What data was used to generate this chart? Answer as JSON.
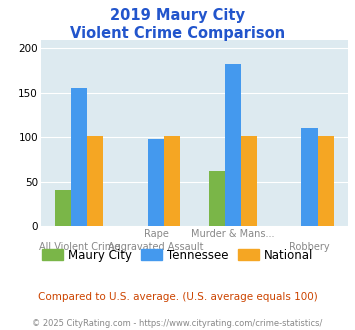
{
  "title_line1": "2019 Maury City",
  "title_line2": "Violent Crime Comparison",
  "title_color": "#2255cc",
  "cat_labels_top": [
    "",
    "Rape",
    "Murder & Mans...",
    ""
  ],
  "cat_labels_bot": [
    "All Violent Crime",
    "Aggravated Assault",
    "",
    "Robbery"
  ],
  "maury_city": [
    41,
    0,
    62,
    0
  ],
  "tennessee": [
    156,
    98,
    183,
    110
  ],
  "national": [
    101,
    101,
    101,
    101
  ],
  "maury_color": "#7ab648",
  "tennessee_color": "#4499ee",
  "national_color": "#f5a623",
  "ylim": [
    0,
    210
  ],
  "yticks": [
    0,
    50,
    100,
    150,
    200
  ],
  "background_color": "#ddeaf0",
  "grid_color": "#ffffff",
  "footnote": "Compared to U.S. average. (U.S. average equals 100)",
  "footnote_color": "#cc4400",
  "copyright": "© 2025 CityRating.com - https://www.cityrating.com/crime-statistics/",
  "copyright_color": "#888888",
  "legend_labels": [
    "Maury City",
    "Tennessee",
    "National"
  ]
}
